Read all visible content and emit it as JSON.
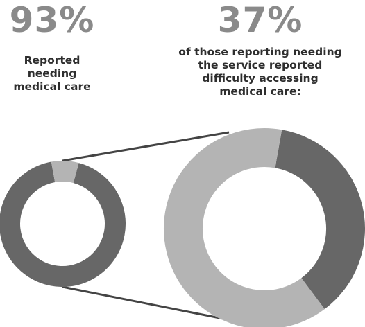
{
  "left_stat": {
    "value": "93%",
    "caption_lines": [
      "Reported",
      "needing",
      "medical care"
    ]
  },
  "right_stat": {
    "value": "37%",
    "caption_lines": [
      "of those reporting needing",
      "the service reported",
      "difficulty accessing",
      "medical care:"
    ]
  },
  "colors": {
    "highlight": "#676767",
    "remainder": "#b4b4b4",
    "big_number": "#8a8a8a",
    "caption": "#2e2e2e",
    "connector": "#444444"
  },
  "chart_data": [
    {
      "type": "pie",
      "donut": true,
      "values": [
        93,
        7
      ],
      "colors": [
        "#676767",
        "#b4b4b4"
      ]
    },
    {
      "type": "pie",
      "donut": true,
      "values": [
        37,
        63
      ],
      "colors": [
        "#676767",
        "#b4b4b4"
      ]
    }
  ]
}
